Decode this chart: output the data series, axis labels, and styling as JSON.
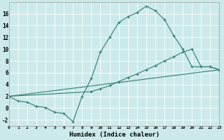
{
  "background_color": "#cceaea",
  "grid_color": "#b8d8d8",
  "line_color": "#2e7d6e",
  "xlabel": "Humidex (Indice chaleur)",
  "xlim": [
    0,
    23
  ],
  "ylim": [
    -3,
    18
  ],
  "yticks": [
    -2,
    0,
    2,
    4,
    6,
    8,
    10,
    12,
    14,
    16
  ],
  "xticks": [
    0,
    1,
    2,
    3,
    4,
    5,
    6,
    7,
    8,
    9,
    10,
    11,
    12,
    13,
    14,
    15,
    16,
    17,
    18,
    19,
    20,
    21,
    22,
    23
  ],
  "series1_x": [
    0,
    1,
    2,
    3,
    4,
    5,
    6,
    7,
    8,
    9,
    10,
    11,
    12,
    13,
    14,
    15,
    16,
    17,
    18,
    19,
    20,
    21,
    22,
    23
  ],
  "series1_y": [
    2.0,
    1.2,
    1.0,
    0.3,
    0.1,
    -0.7,
    -0.9,
    -2.3,
    2.0,
    5.0,
    9.5,
    12.0,
    14.5,
    15.5,
    16.2,
    17.3,
    16.5,
    15.0,
    12.3,
    10.0,
    7.0,
    7.0,
    7.0,
    6.5
  ],
  "series2_x": [
    0,
    9,
    10,
    11,
    12,
    13,
    14,
    15,
    16,
    17,
    18,
    19,
    20,
    21,
    22,
    23
  ],
  "series2_y": [
    2.0,
    2.8,
    3.3,
    3.8,
    4.5,
    5.2,
    5.8,
    6.5,
    7.2,
    8.0,
    8.7,
    9.5,
    10.0,
    7.0,
    7.0,
    6.5
  ],
  "series3_x": [
    0,
    23
  ],
  "series3_y": [
    2.0,
    6.5
  ]
}
